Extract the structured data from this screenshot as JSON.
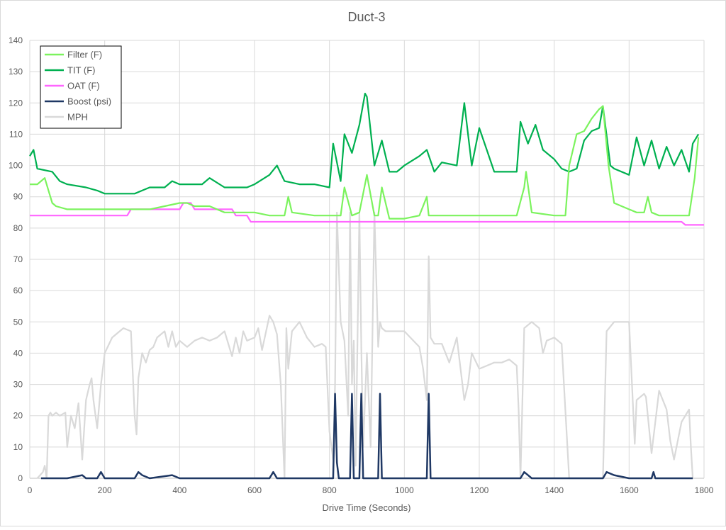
{
  "chart_data": {
    "type": "line",
    "title": "Duct-3",
    "xlabel": "Drive Time (Seconds)",
    "ylabel": "",
    "xlim": [
      0,
      1800
    ],
    "ylim": [
      0,
      140
    ],
    "x_ticks": [
      0,
      200,
      400,
      600,
      800,
      1000,
      1200,
      1400,
      1600,
      1800
    ],
    "y_ticks": [
      0,
      10,
      20,
      30,
      40,
      50,
      60,
      70,
      80,
      90,
      100,
      110,
      120,
      130,
      140
    ],
    "grid": true,
    "legend_position": "top-left",
    "series": [
      {
        "name": "Filter (F)",
        "color": "#7CF35E",
        "x": [
          0,
          20,
          40,
          50,
          60,
          70,
          100,
          150,
          180,
          200,
          260,
          280,
          320,
          360,
          400,
          420,
          440,
          480,
          520,
          560,
          600,
          640,
          680,
          690,
          700,
          760,
          800,
          830,
          840,
          860,
          880,
          900,
          920,
          930,
          940,
          960,
          1000,
          1040,
          1060,
          1065,
          1080,
          1120,
          1200,
          1300,
          1320,
          1325,
          1340,
          1400,
          1430,
          1440,
          1460,
          1480,
          1500,
          1520,
          1530,
          1545,
          1560,
          1580,
          1620,
          1640,
          1650,
          1660,
          1680,
          1700,
          1740,
          1760,
          1775,
          1785
        ],
        "y": [
          94,
          94,
          96,
          92,
          88,
          87,
          86,
          86,
          86,
          86,
          86,
          86,
          86,
          87,
          88,
          88,
          87,
          87,
          85,
          85,
          85,
          84,
          84,
          90,
          85,
          84,
          84,
          84,
          93,
          84,
          85,
          97,
          84,
          84,
          93,
          83,
          83,
          84,
          90,
          84,
          84,
          84,
          84,
          84,
          93,
          98,
          85,
          84,
          84,
          100,
          110,
          111,
          115,
          118,
          119,
          100,
          88,
          87,
          85,
          85,
          90,
          85,
          84,
          84,
          84,
          84,
          96,
          109
        ]
      },
      {
        "name": "TIT (F)",
        "color": "#00B050",
        "x": [
          0,
          10,
          20,
          60,
          80,
          100,
          150,
          180,
          200,
          250,
          280,
          300,
          320,
          360,
          380,
          400,
          420,
          460,
          480,
          520,
          540,
          580,
          600,
          640,
          660,
          680,
          720,
          740,
          760,
          800,
          810,
          830,
          840,
          860,
          880,
          895,
          900,
          920,
          940,
          960,
          980,
          1000,
          1040,
          1060,
          1080,
          1100,
          1140,
          1160,
          1180,
          1200,
          1220,
          1240,
          1260,
          1280,
          1300,
          1310,
          1330,
          1350,
          1370,
          1400,
          1420,
          1440,
          1460,
          1480,
          1500,
          1520,
          1530,
          1550,
          1560,
          1600,
          1620,
          1640,
          1660,
          1680,
          1700,
          1720,
          1740,
          1760,
          1770,
          1785
        ],
        "y": [
          103,
          105,
          99,
          98,
          95,
          94,
          93,
          92,
          91,
          91,
          91,
          92,
          93,
          93,
          95,
          94,
          94,
          94,
          96,
          93,
          93,
          93,
          94,
          97,
          100,
          95,
          94,
          94,
          94,
          93,
          107,
          95,
          110,
          104,
          113,
          123,
          122,
          100,
          108,
          98,
          98,
          100,
          103,
          105,
          98,
          101,
          100,
          120,
          100,
          112,
          105,
          98,
          98,
          98,
          98,
          114,
          107,
          113,
          105,
          102,
          99,
          98,
          99,
          108,
          111,
          112,
          119,
          100,
          99,
          97,
          109,
          100,
          108,
          99,
          106,
          100,
          105,
          98,
          107,
          110
        ]
      },
      {
        "name": "OAT (F)",
        "color": "#FF66FF",
        "x": [
          0,
          260,
          270,
          400,
          410,
          430,
          440,
          540,
          550,
          580,
          590,
          650,
          660,
          1740,
          1750,
          1800
        ],
        "y": [
          84,
          84,
          86,
          86,
          88,
          88,
          86,
          86,
          84,
          84,
          82,
          82,
          82,
          82,
          81,
          81
        ]
      },
      {
        "name": "Boost (psi)",
        "color": "#1F3864",
        "x": [
          30,
          100,
          140,
          150,
          160,
          180,
          190,
          200,
          280,
          290,
          300,
          320,
          380,
          400,
          600,
          640,
          650,
          660,
          680,
          700,
          800,
          810,
          815,
          820,
          825,
          840,
          855,
          860,
          865,
          870,
          880,
          885,
          890,
          895,
          900,
          930,
          935,
          940,
          950,
          1060,
          1065,
          1070,
          1080,
          1200,
          1310,
          1320,
          1330,
          1340,
          1360,
          1440,
          1530,
          1540,
          1560,
          1600,
          1660,
          1665,
          1670,
          1680,
          1760,
          1770
        ],
        "y": [
          0,
          0,
          1,
          0,
          0,
          0,
          2,
          0,
          0,
          2,
          1,
          0,
          1,
          0,
          0,
          0,
          2,
          0,
          0,
          0,
          0,
          0,
          27,
          5,
          0,
          0,
          0,
          27,
          0,
          0,
          0,
          27,
          0,
          0,
          0,
          0,
          27,
          0,
          0,
          0,
          27,
          0,
          0,
          0,
          0,
          2,
          1,
          0,
          0,
          0,
          0,
          2,
          1,
          0,
          0,
          2,
          0,
          0,
          0,
          0
        ]
      },
      {
        "name": "MPH",
        "color": "#D9D9D9",
        "x": [
          20,
          35,
          40,
          45,
          50,
          55,
          60,
          70,
          80,
          95,
          100,
          110,
          120,
          130,
          140,
          150,
          160,
          165,
          170,
          180,
          190,
          200,
          220,
          240,
          250,
          270,
          280,
          285,
          290,
          300,
          310,
          320,
          330,
          340,
          360,
          370,
          380,
          390,
          400,
          420,
          440,
          460,
          480,
          500,
          520,
          540,
          550,
          560,
          570,
          580,
          600,
          610,
          620,
          640,
          650,
          660,
          670,
          680,
          685,
          690,
          700,
          720,
          740,
          760,
          780,
          790,
          800,
          810,
          815,
          820,
          830,
          840,
          850,
          855,
          860,
          865,
          870,
          880,
          885,
          890,
          900,
          910,
          920,
          930,
          935,
          940,
          950,
          1000,
          1040,
          1050,
          1060,
          1065,
          1070,
          1080,
          1100,
          1120,
          1140,
          1150,
          1160,
          1170,
          1180,
          1200,
          1220,
          1240,
          1260,
          1280,
          1300,
          1305,
          1310,
          1320,
          1340,
          1360,
          1370,
          1380,
          1400,
          1420,
          1440,
          1520,
          1530,
          1540,
          1560,
          1580,
          1600,
          1615,
          1620,
          1640,
          1645,
          1660,
          1680,
          1700,
          1710,
          1720,
          1740,
          1760,
          1765,
          1770
        ],
        "y": [
          0,
          2,
          4,
          0,
          20,
          21,
          20,
          21,
          20,
          21,
          10,
          20,
          16,
          24,
          6,
          25,
          30,
          32,
          25,
          16,
          30,
          40,
          45,
          47,
          48,
          47,
          20,
          14,
          32,
          40,
          37,
          41,
          42,
          45,
          47,
          42,
          47,
          42,
          44,
          42,
          44,
          45,
          44,
          45,
          47,
          39,
          45,
          40,
          47,
          44,
          45,
          48,
          41,
          52,
          50,
          46,
          30,
          0,
          48,
          35,
          47,
          50,
          45,
          42,
          43,
          42,
          15,
          6,
          30,
          85,
          50,
          44,
          20,
          85,
          30,
          44,
          4,
          85,
          42,
          10,
          40,
          10,
          85,
          42,
          50,
          48,
          47,
          47,
          42,
          35,
          25,
          71,
          45,
          43,
          43,
          37,
          45,
          35,
          25,
          30,
          40,
          35,
          36,
          37,
          37,
          38,
          36,
          22,
          0,
          48,
          50,
          48,
          40,
          44,
          45,
          43,
          0,
          0,
          0,
          47,
          50,
          50,
          50,
          11,
          25,
          27,
          26,
          8,
          28,
          22,
          12,
          6,
          18,
          22,
          10,
          0
        ]
      }
    ]
  }
}
